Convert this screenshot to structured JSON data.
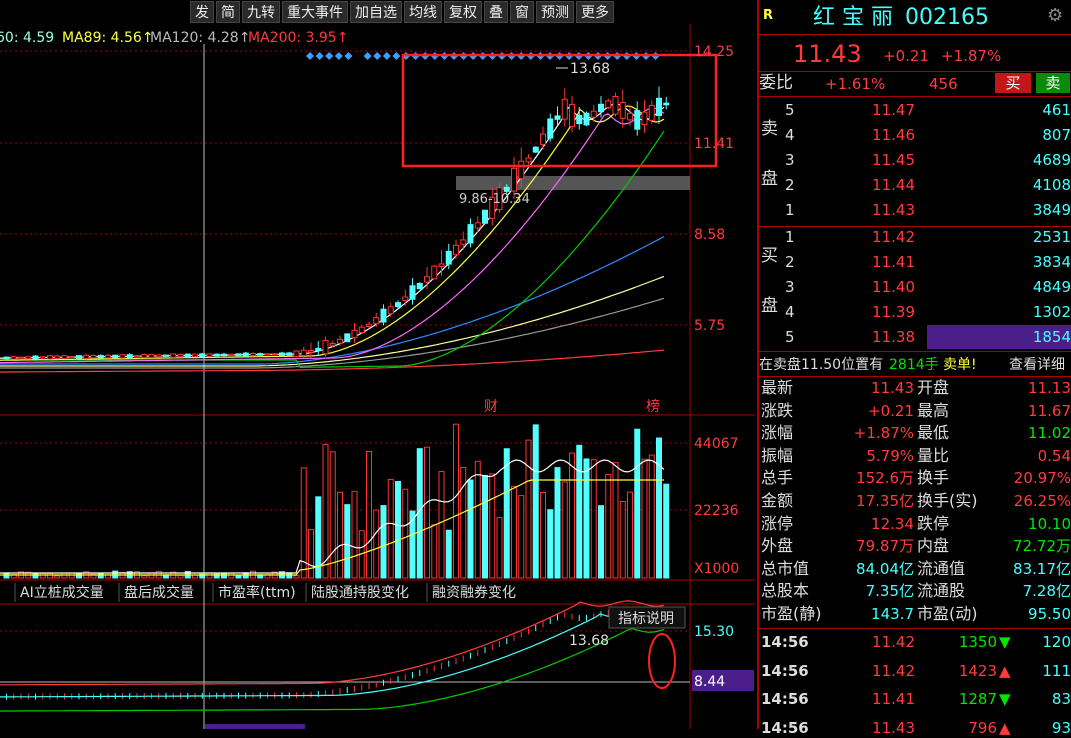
{
  "toolbar": [
    "发",
    "简",
    "九转",
    "重大事件",
    "加自选",
    "均线",
    "复权",
    "叠",
    "窗",
    "预测",
    "更多"
  ],
  "ma_legend": [
    "60: 4.59",
    "MA89: 4.56↑",
    "MA120: 4.28↑",
    "MA200: 3.95↑"
  ],
  "chart": {
    "price_labels": [
      "14.25",
      "11.41",
      "8.58",
      "5.75"
    ],
    "high_label": "13.68",
    "range_label": "9.86-10.34",
    "markers": [
      "财",
      "榜"
    ],
    "volume_labels": [
      "44067",
      "22236",
      "X1000"
    ],
    "tabs": [
      "AI立桩成交量",
      "盘后成交量",
      "市盈率(ttm)",
      "陆股通持股变化",
      "融资融券变化"
    ],
    "indicator_button": "指标说明",
    "indicator_high": "13.68",
    "indicator_labels": [
      "15.30",
      "8.44"
    ]
  },
  "quote": {
    "flag": "R",
    "name": "红 宝 丽",
    "code": "002165",
    "price": "11.43",
    "change": "+0.21",
    "change_pct": "+1.87%",
    "ratio_label": "委比",
    "ratio": "+1.61%",
    "ratio_diff": "456",
    "buy_button": "买",
    "sell_button": "卖",
    "sell_side": [
      "卖",
      "盘"
    ],
    "sell": [
      [
        "5",
        "11.47",
        "461"
      ],
      [
        "4",
        "11.46",
        "807"
      ],
      [
        "3",
        "11.45",
        "4689"
      ],
      [
        "2",
        "11.44",
        "4108"
      ],
      [
        "1",
        "11.43",
        "3849"
      ]
    ],
    "buy_side": [
      "买",
      "盘"
    ],
    "buy": [
      [
        "1",
        "11.42",
        "2531"
      ],
      [
        "2",
        "11.41",
        "3834"
      ],
      [
        "3",
        "11.40",
        "4849"
      ],
      [
        "4",
        "11.39",
        "1302"
      ],
      [
        "5",
        "11.38",
        "1854"
      ]
    ],
    "notice": [
      "在卖盘11.50位置有",
      "2814手",
      "卖单!",
      "查看详细"
    ],
    "stats": [
      [
        "最新",
        "11.43",
        "开盘",
        "11.13"
      ],
      [
        "涨跌",
        "+0.21",
        "最高",
        "11.67"
      ],
      [
        "涨幅",
        "+1.87%",
        "最低",
        "11.02"
      ],
      [
        "振幅",
        "5.79%",
        "量比",
        "0.54"
      ],
      [
        "总手",
        "152.6万",
        "换手",
        "20.97%"
      ],
      [
        "金额",
        "17.35亿",
        "换手(实)",
        "26.25%"
      ],
      [
        "涨停",
        "12.34",
        "跌停",
        "10.10"
      ],
      [
        "外盘",
        "79.87万",
        "内盘",
        "72.72万"
      ],
      [
        "总市值",
        "84.04亿",
        "流通值",
        "83.17亿"
      ],
      [
        "总股本",
        "7.35亿",
        "流通股",
        "7.28亿"
      ],
      [
        "市盈(静)",
        "143.7",
        "市盈(动)",
        "95.50"
      ]
    ],
    "ticks": [
      [
        "14:56",
        "11.42",
        "1350",
        "120"
      ],
      [
        "14:56",
        "11.42",
        "1423",
        "111"
      ],
      [
        "14:56",
        "11.41",
        "1287",
        "83"
      ],
      [
        "14:56",
        "11.43",
        "796",
        "93"
      ]
    ]
  }
}
